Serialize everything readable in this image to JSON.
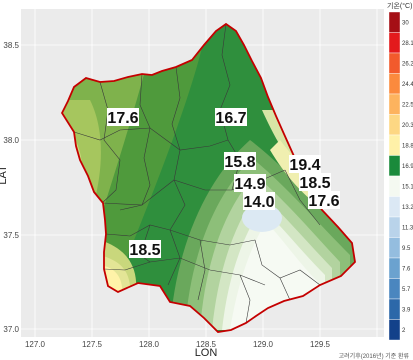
{
  "axes": {
    "x_title": "LON",
    "y_title": "LAT",
    "x_ticks": [
      "127.0",
      "127.5",
      "128.0",
      "128.5",
      "129.0",
      "129.5"
    ],
    "y_ticks": [
      "38.5",
      "38.0",
      "37.5",
      "37.0"
    ]
  },
  "labels": [
    {
      "name": "west-north",
      "value": "17.6"
    },
    {
      "name": "north-center",
      "value": "16.7"
    },
    {
      "name": "center-upper",
      "value": "15.8"
    },
    {
      "name": "center",
      "value": "14.9"
    },
    {
      "name": "center-low",
      "value": "14.0"
    },
    {
      "name": "east-upper",
      "value": "19.4"
    },
    {
      "name": "east-mid",
      "value": "18.5"
    },
    {
      "name": "east-low",
      "value": "17.6"
    },
    {
      "name": "southwest",
      "value": "18.5"
    }
  ],
  "legend": {
    "title": "기온(°C)",
    "values": [
      "30",
      "28.1",
      "26.2",
      "24.4",
      "22.5",
      "20.3",
      "18.8",
      "16.9",
      "15.1",
      "13.2",
      "11.3",
      "9.5",
      "7.6",
      "5.7",
      "3.9",
      "2"
    ],
    "colors": [
      "#a50f15",
      "#e31a1c",
      "#f25a2c",
      "#fb8a3d",
      "#fdb35e",
      "#fdd783",
      "#fff1a8",
      "#1a8a3b",
      "#f4f9f1",
      "#dbe8f4",
      "#b9d3ea",
      "#94bddf",
      "#6ba2cf",
      "#4a86bf",
      "#2c68a9",
      "#13418a"
    ]
  },
  "source": "고려기후(2016년) 기준 환류"
}
